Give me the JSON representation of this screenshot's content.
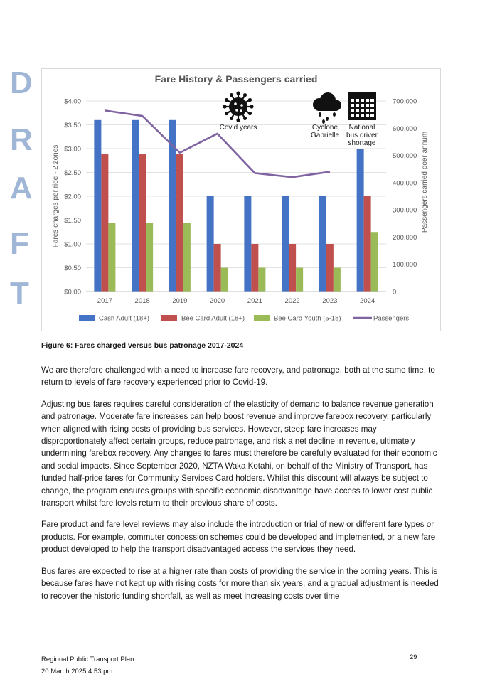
{
  "watermark": [
    "D",
    "R",
    "A",
    "F",
    "T"
  ],
  "chart_data": {
    "type": "bar",
    "title": "Fare History & Passengers carried",
    "categories": [
      "2017",
      "2018",
      "2019",
      "2020",
      "2021",
      "2022",
      "2023",
      "2024"
    ],
    "ylabel": "Fares charges per ride - 2 zones",
    "y2label": "Passengers carried poer annum",
    "ylim": [
      0,
      4
    ],
    "y2lim": [
      0,
      700000
    ],
    "yticks": [
      "$0.00",
      "$0.50",
      "$1.00",
      "$1.50",
      "$2.00",
      "$2.50",
      "$3.00",
      "$3.50",
      "$4.00"
    ],
    "y2ticks": [
      "0",
      "100,000",
      "200,000",
      "300,000",
      "400,000",
      "500,000",
      "600,000",
      "700,000"
    ],
    "series": [
      {
        "name": "Cash Adult (18+)",
        "type": "bar",
        "color": "#4472c4",
        "values": [
          3.6,
          3.6,
          3.6,
          2.0,
          2.0,
          2.0,
          2.0,
          3.0
        ]
      },
      {
        "name": "Bee Card Adult (18+)",
        "type": "bar",
        "color": "#c0504d",
        "values": [
          2.88,
          2.88,
          2.88,
          1.0,
          1.0,
          1.0,
          1.0,
          2.0
        ]
      },
      {
        "name": "Bee Card Youth (5-18)",
        "type": "bar",
        "color": "#9bbb59",
        "values": [
          1.44,
          1.44,
          1.44,
          0.5,
          0.5,
          0.5,
          0.5,
          1.25
        ]
      },
      {
        "name": "Passengers",
        "type": "line",
        "axis": "right",
        "color": "#8064a2",
        "values": [
          665000,
          645000,
          510000,
          580000,
          435000,
          420000,
          440000,
          null
        ]
      }
    ],
    "annotations": [
      {
        "label": "Covid years",
        "icon": "virus-icon"
      },
      {
        "label": "Cyclone Gabrielle",
        "icon": "storm-cloud-icon"
      },
      {
        "label": "National bus driver shortage",
        "icon": "calendar-icon"
      }
    ]
  },
  "caption": "Figure 6: Fares charged versus bus patronage 2017-2024",
  "paragraphs": [
    "We are therefore challenged with a need to increase fare recovery, and patronage, both at the same time, to return to levels of fare recovery experienced prior to Covid-19.",
    "Adjusting bus fares requires careful consideration of the elasticity of demand to balance revenue generation and patronage. Moderate fare increases can help boost revenue and improve farebox recovery, particularly when aligned with rising costs of providing bus services. However, steep fare increases may disproportionately affect certain groups, reduce patronage, and risk a net decline in revenue, ultimately undermining farebox recovery. Any changes to fares must therefore be carefully evaluated for their economic and social impacts. Since September 2020, NZTA Waka Kotahi, on behalf of the Ministry of Transport, has funded half-price fares for Community Services Card holders. Whilst this discount will always be subject to change, the program ensures groups with specific economic disadvantage have access to lower cost public transport whilst fare levels return to their previous share of costs.",
    "Fare product and fare level reviews may also include the introduction or trial of new or different fare types or products. For example, commuter concession schemes could be developed and implemented, or a new fare product developed to help the transport disadvantaged access the services they need.",
    "Bus fares are expected to rise at a higher rate than costs of providing the service in the coming years. This is because fares have not kept up with rising costs for more than six years, and a gradual adjustment is needed to recover the historic funding shortfall, as well as meet increasing costs over time"
  ],
  "footer": {
    "doc_title": "Regional Public Transport Plan",
    "date": "20 March 2025 4.53 pm",
    "page": "29"
  }
}
